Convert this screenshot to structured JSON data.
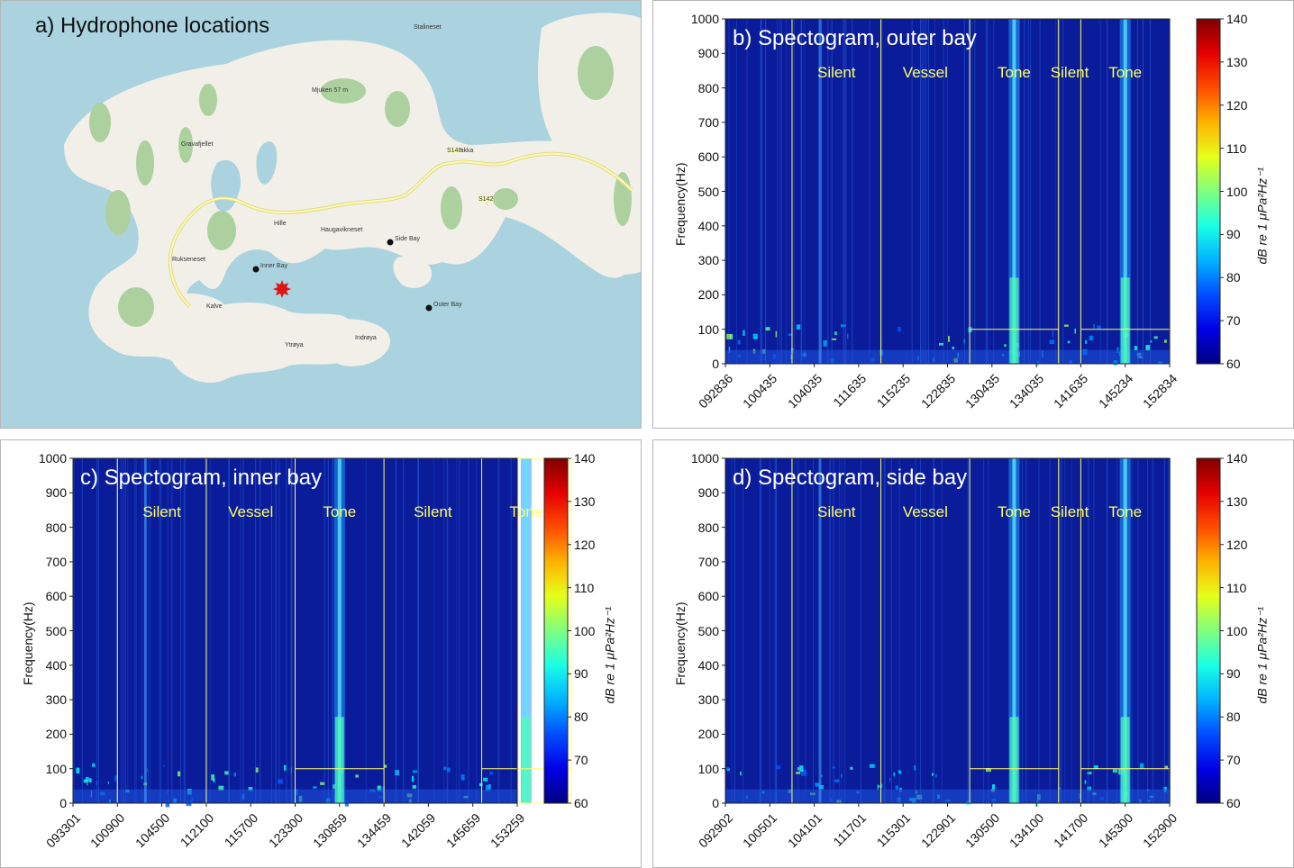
{
  "panel_a": {
    "title": "a) Hydrophone locations",
    "hydrophones": [
      {
        "label": "Inner Bay"
      },
      {
        "label": "Side Bay"
      },
      {
        "label": "Outer Bay"
      }
    ],
    "place_labels": [
      "Stalineset",
      "Mjuken 57 m",
      "Gravafjellet",
      "Bakka",
      "Hille",
      "Haugavikneset",
      "Kalve",
      "Ytrøya",
      "Indrøya",
      "Rukseneset"
    ],
    "road_labels": [
      "S148",
      "S142"
    ],
    "marker": "red-star"
  },
  "colors": {
    "sea": "#aad3df",
    "land": "#f2efe9",
    "forest": "#add19e",
    "road": "#f7fabf",
    "segment_box": "#ffff66"
  },
  "colorbar": {
    "label": "dB re 1 μPa²Hz⁻¹",
    "ticks": [
      "60",
      "70",
      "80",
      "90",
      "100",
      "110",
      "120",
      "130",
      "140"
    ],
    "range": [
      60,
      140
    ],
    "colormap": "jet"
  },
  "chart_data": [
    {
      "type": "heatmap",
      "title": "b) Spectogram, outer bay",
      "ylabel": "Frequency(Hz)",
      "ylim": [
        0,
        1000
      ],
      "yticks": [
        "0",
        "100",
        "200",
        "300",
        "400",
        "500",
        "600",
        "700",
        "800",
        "900",
        "1000"
      ],
      "xticks": [
        "092836",
        "100435",
        "104035",
        "111635",
        "115235",
        "122835",
        "130435",
        "134035",
        "141635",
        "145234",
        "152834"
      ],
      "segments": [
        {
          "label": "Silent",
          "box": [
            1.5,
            3.5
          ],
          "fmax": 1000
        },
        {
          "label": "Vessel",
          "box": null
        },
        {
          "label": "Tone",
          "box": [
            5.5,
            7.5
          ],
          "fmax": 1000,
          "sub_box_fmax": 100
        },
        {
          "label": "Silent",
          "box": null
        },
        {
          "label": "Tone",
          "box": [
            8.0,
            10.0
          ],
          "fmax": 1000,
          "sub_box_fmax": 100
        }
      ],
      "colorbar_range": [
        60,
        140
      ]
    },
    {
      "type": "heatmap",
      "title": "c) Spectogram, inner bay",
      "ylabel": "Frequency(Hz)",
      "ylim": [
        0,
        1000
      ],
      "yticks": [
        "0",
        "100",
        "200",
        "300",
        "400",
        "500",
        "600",
        "700",
        "800",
        "900",
        "1000"
      ],
      "xticks": [
        "093301",
        "100900",
        "104500",
        "112100",
        "115700",
        "123300",
        "130859",
        "134459",
        "142059",
        "145659",
        "153259"
      ],
      "segments": [
        {
          "label": "Silent",
          "box": [
            1.0,
            3.0
          ],
          "fmax": 1000
        },
        {
          "label": "Vessel",
          "box": null
        },
        {
          "label": "Tone",
          "box": [
            5.0,
            7.0
          ],
          "fmax": 1000,
          "sub_box_fmax": 100
        },
        {
          "label": "Silent",
          "box": null
        },
        {
          "label": "Tone",
          "box": [
            9.2,
            11.2
          ],
          "fmax": 1000,
          "sub_box_fmax": 100
        }
      ],
      "colorbar_range": [
        60,
        140
      ]
    },
    {
      "type": "heatmap",
      "title": "d) Spectogram, side bay",
      "ylabel": "Frequency(Hz)",
      "ylim": [
        0,
        1000
      ],
      "yticks": [
        "0",
        "100",
        "200",
        "300",
        "400",
        "500",
        "600",
        "700",
        "800",
        "900",
        "1000"
      ],
      "xticks": [
        "092902",
        "100501",
        "104101",
        "111701",
        "115301",
        "122901",
        "130500",
        "134100",
        "141700",
        "145300",
        "152900"
      ],
      "segments": [
        {
          "label": "Silent",
          "box": [
            1.5,
            3.5
          ],
          "fmax": 1000
        },
        {
          "label": "Vessel",
          "box": null
        },
        {
          "label": "Tone",
          "box": [
            5.5,
            7.5
          ],
          "fmax": 1000,
          "sub_box_fmax": 100
        },
        {
          "label": "Silent",
          "box": null
        },
        {
          "label": "Tone",
          "box": [
            8.0,
            10.0
          ],
          "fmax": 1000,
          "sub_box_fmax": 100
        }
      ],
      "colorbar_range": [
        60,
        140
      ]
    }
  ]
}
